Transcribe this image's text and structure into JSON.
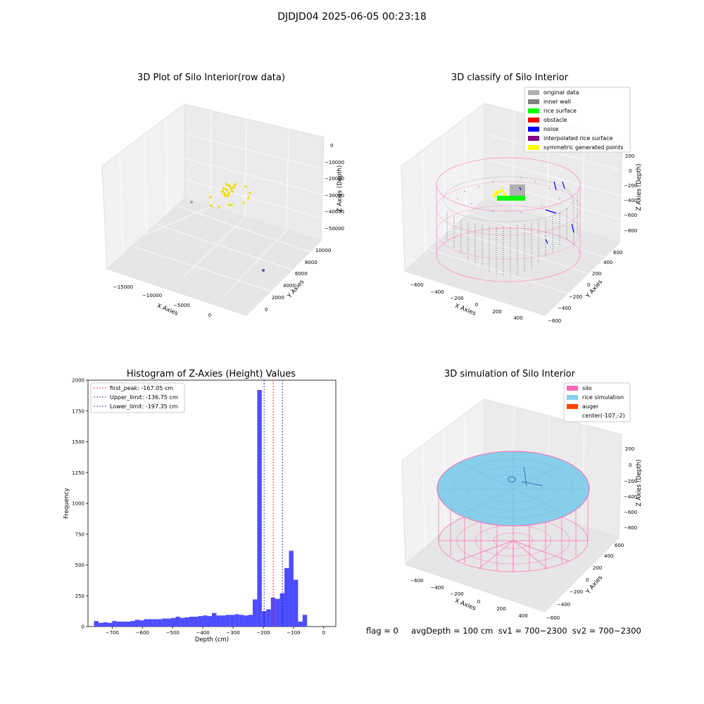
{
  "suptitle": "DJDJD04 2025-06-05 00:23:18",
  "panels": {
    "raw": {
      "title": "3D Plot of Silo Interior(row data)",
      "xlabel": "X Axies",
      "ylabel": "Y Axies",
      "zlabel": "Z Axies (Depth)",
      "xticks": [
        "−15000",
        "−10000",
        "−5000",
        "0"
      ],
      "yticks": [
        "0",
        "2000",
        "4000",
        "6000",
        "8000",
        "10000"
      ],
      "zticks": [
        "0",
        "−10000",
        "−20000",
        "−30000",
        "−40000",
        "−50000"
      ]
    },
    "classify": {
      "title": "3D classify of Silo Interior",
      "xlabel": "X Axies",
      "ylabel": "Y Axies",
      "zlabel": "Z Axies (Depth)",
      "xticks": [
        "−600",
        "−400",
        "−200",
        "0",
        "200",
        "400"
      ],
      "yticks": [
        "−600",
        "−400",
        "−200",
        "0",
        "200",
        "400",
        "600"
      ],
      "zticks": [
        "200",
        "0",
        "−200",
        "−400",
        "−600",
        "−800"
      ],
      "legend": [
        {
          "label": "original data",
          "color": "#b0b0b0"
        },
        {
          "label": "inner wall",
          "color": "#808080"
        },
        {
          "label": "rice surface",
          "color": "#00ff00"
        },
        {
          "label": "obstacle",
          "color": "#ff0000"
        },
        {
          "label": "noise",
          "color": "#0000ff"
        },
        {
          "label": "interpolated rice surface",
          "color": "#800080"
        },
        {
          "label": "symmetric generated points",
          "color": "#ffff00"
        }
      ]
    },
    "simulation": {
      "title": "3D simulation of Silo Interior",
      "xlabel": "X Axies",
      "ylabel": "Y Axies",
      "zlabel": "Z Axies (Depth)",
      "xticks": [
        "−600",
        "−400",
        "−200",
        "0",
        "200",
        "400"
      ],
      "yticks": [
        "−600",
        "−400",
        "−200",
        "0",
        "200",
        "400",
        "600"
      ],
      "zticks": [
        "200",
        "0",
        "−200",
        "−400",
        "−600",
        "−800"
      ],
      "legend": [
        {
          "label": "silo",
          "color": "#ff69b4"
        },
        {
          "label": "rice simulation",
          "color": "#87ceeb"
        },
        {
          "label": "auger",
          "color": "#ff4500"
        },
        {
          "label": "center(-107,-2)",
          "color": ""
        }
      ]
    }
  },
  "footer": "flag = 0     avgDepth = 100 cm  sv1 = 700~2300  sv2 = 700~2300",
  "chart_data": {
    "type": "bar",
    "title": "Histogram of Z-Axies (Height) Values",
    "xlabel": "Depth (cm)",
    "ylabel": "Frequency",
    "xlim": [
      -780,
      40
    ],
    "ylim": [
      0,
      2000
    ],
    "xticks": [
      -700,
      -600,
      -500,
      -400,
      -300,
      -200,
      -100,
      0
    ],
    "xtick_labels": [
      "−700",
      "−600",
      "−500",
      "−400",
      "−300",
      "−200",
      "−100",
      "0"
    ],
    "yticks": [
      0,
      250,
      500,
      750,
      1000,
      1250,
      1500,
      1750,
      2000
    ],
    "bar_color": "#4d4dff",
    "bin_start": -760,
    "bin_width": 15,
    "values": [
      45,
      30,
      35,
      30,
      45,
      40,
      40,
      40,
      45,
      55,
      50,
      60,
      60,
      60,
      60,
      65,
      65,
      70,
      80,
      70,
      75,
      80,
      80,
      85,
      90,
      85,
      110,
      90,
      90,
      95,
      95,
      100,
      95,
      90,
      95,
      220,
      1920,
      125,
      140,
      235,
      225,
      270,
      475,
      615,
      380,
      40,
      95
    ],
    "vlines": [
      {
        "label": "first_peak: -167.05 cm",
        "x": -167.05,
        "color": "#ff0000"
      },
      {
        "label": "Upper_limit: -136.75 cm",
        "x": -136.75,
        "color": "#0000cc"
      },
      {
        "label": "Lower_limit: -197.35 cm",
        "x": -197.35,
        "color": "#0000cc"
      }
    ]
  }
}
